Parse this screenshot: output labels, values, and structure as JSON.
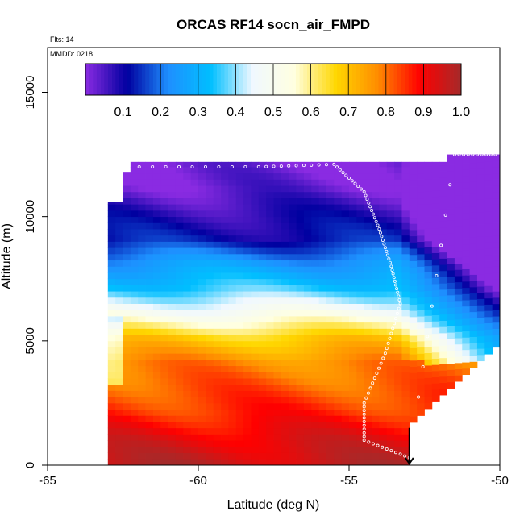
{
  "chart_data": {
    "type": "heatmap",
    "title": "ORCAS RF14 socn_air_FMPD",
    "notes": [
      "Flts: 14",
      "MMDD: 0218"
    ],
    "xlabel": "Latitude (deg N)",
    "ylabel": "Altitude (m)",
    "xlim": [
      -65,
      -50
    ],
    "ylim": [
      0,
      16800
    ],
    "xticks": [
      -65,
      -60,
      -55,
      -50
    ],
    "yticks": [
      0,
      5000,
      10000,
      15000
    ],
    "colorbar": {
      "range": [
        0,
        1
      ],
      "ticks": [
        0.1,
        0.2,
        0.3,
        0.4,
        0.5,
        0.6,
        0.7,
        0.8,
        0.9,
        1.0
      ],
      "tick_labels": [
        "0.1",
        "0.2",
        "0.3",
        "0.4",
        "0.5",
        "0.6",
        "0.7",
        "0.8",
        "0.9",
        "1.0"
      ],
      "colors": [
        "#8a2be2",
        "#0000a0",
        "#1e90ff",
        "#00bfff",
        "#f0f8ff",
        "#ffffe0",
        "#ffd700",
        "#ff8c00",
        "#ff0000",
        "#a52a2a"
      ]
    },
    "arrow_marker": {
      "x": -53,
      "direction": "down"
    },
    "profile": [
      {
        "alt": 0,
        "value": 0.96
      },
      {
        "alt": 1000,
        "value": 0.92
      },
      {
        "alt": 2000,
        "value": 0.86
      },
      {
        "alt": 3000,
        "value": 0.82
      },
      {
        "alt": 4000,
        "value": 0.78
      },
      {
        "alt": 5000,
        "value": 0.68
      },
      {
        "alt": 6000,
        "value": 0.5
      },
      {
        "alt": 7000,
        "value": 0.35
      },
      {
        "alt": 8000,
        "value": 0.25
      },
      {
        "alt": 9000,
        "value": 0.12
      },
      {
        "alt": 10000,
        "value": 0.08
      },
      {
        "alt": 11000,
        "value": 0.03
      },
      {
        "alt": 12000,
        "value": 0.01
      }
    ],
    "flight_track": [
      {
        "lat": -62.4,
        "alt": 12000
      },
      {
        "lat": -58,
        "alt": 12000
      },
      {
        "lat": -55.5,
        "alt": 12100
      },
      {
        "lat": -54.5,
        "alt": 11000
      },
      {
        "lat": -54,
        "alt": 9500
      },
      {
        "lat": -53.6,
        "alt": 8000
      },
      {
        "lat": -53.3,
        "alt": 6500
      },
      {
        "lat": -53.8,
        "alt": 4500
      },
      {
        "lat": -54.5,
        "alt": 2500
      },
      {
        "lat": -54.5,
        "alt": 1000
      },
      {
        "lat": -53,
        "alt": 300
      },
      {
        "lat": -51.5,
        "alt": 12500
      },
      {
        "lat": -50,
        "alt": 12500
      }
    ]
  }
}
